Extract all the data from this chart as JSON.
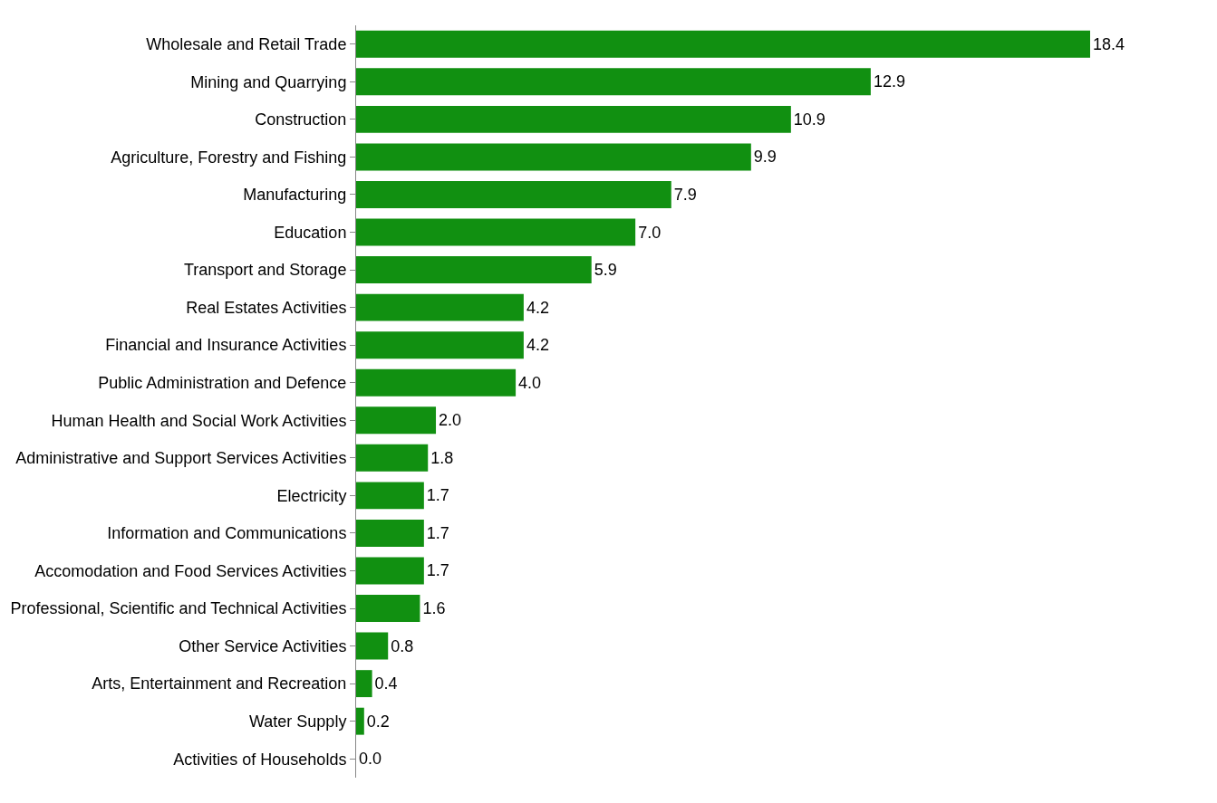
{
  "chart_data": {
    "type": "bar",
    "orientation": "horizontal",
    "value_labels": [
      "18.4",
      "12.9",
      "10.9",
      "9.9",
      "7.9",
      "7.0",
      "5.9",
      "4.2",
      "4.2",
      "4.0",
      "2.0",
      "1.8",
      "1.7",
      "1.7",
      "1.7",
      "1.6",
      "0.8",
      "0.4",
      "0.2",
      "0.0"
    ],
    "color": "#119011",
    "categories": [
      "Wholesale and Retail Trade",
      "Mining and Quarrying",
      "Construction",
      "Agriculture, Forestry and Fishing",
      "Manufacturing",
      "Education",
      "Transport and Storage",
      "Real Estates Activities",
      "Financial and Insurance Activities",
      "Public Administration and Defence",
      "Human Health and Social Work Activities",
      "Administrative and Support Services Activities",
      "Electricity",
      "Information and Communications",
      "Accomodation and Food Services Activities",
      "Professional, Scientific and Technical Activities",
      "Other Service Activities",
      "Arts, Entertainment and Recreation",
      "Water Supply",
      "Activities of Households"
    ],
    "values": [
      18.4,
      12.9,
      10.9,
      9.9,
      7.9,
      7.0,
      5.9,
      4.2,
      4.2,
      4.0,
      2.0,
      1.8,
      1.7,
      1.7,
      1.7,
      1.6,
      0.8,
      0.4,
      0.2,
      0.0
    ]
  }
}
